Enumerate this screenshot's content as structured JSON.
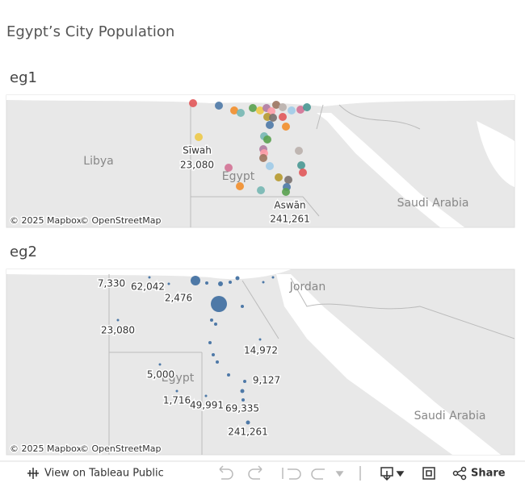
{
  "header": {
    "title": "Egypt’s City Population"
  },
  "sheets": [
    {
      "name": "eg1",
      "map_labels": [
        "Libya",
        "Egypt",
        "Saudi Arabia"
      ],
      "data_labels": [
        "Sīwah",
        "23,080",
        "Aswān",
        "241,261"
      ],
      "attribution": [
        "© 2025 Mapbox",
        "© OpenStreetMap"
      ]
    },
    {
      "name": "eg2",
      "map_labels": [
        "Jordan",
        "Egypt",
        "Saudi Arabia"
      ],
      "data_labels": [
        "7,330",
        "62,042",
        "2,476",
        "23,080",
        "14,972",
        "5,000",
        "9,127",
        "1,716",
        "49,991",
        "69,335",
        "241,261"
      ],
      "attribution": [
        "© 2025 Mapbox",
        "© OpenStreetMap"
      ]
    }
  ],
  "toolbar": {
    "view": "View on Tableau Public",
    "share": "Share"
  }
}
